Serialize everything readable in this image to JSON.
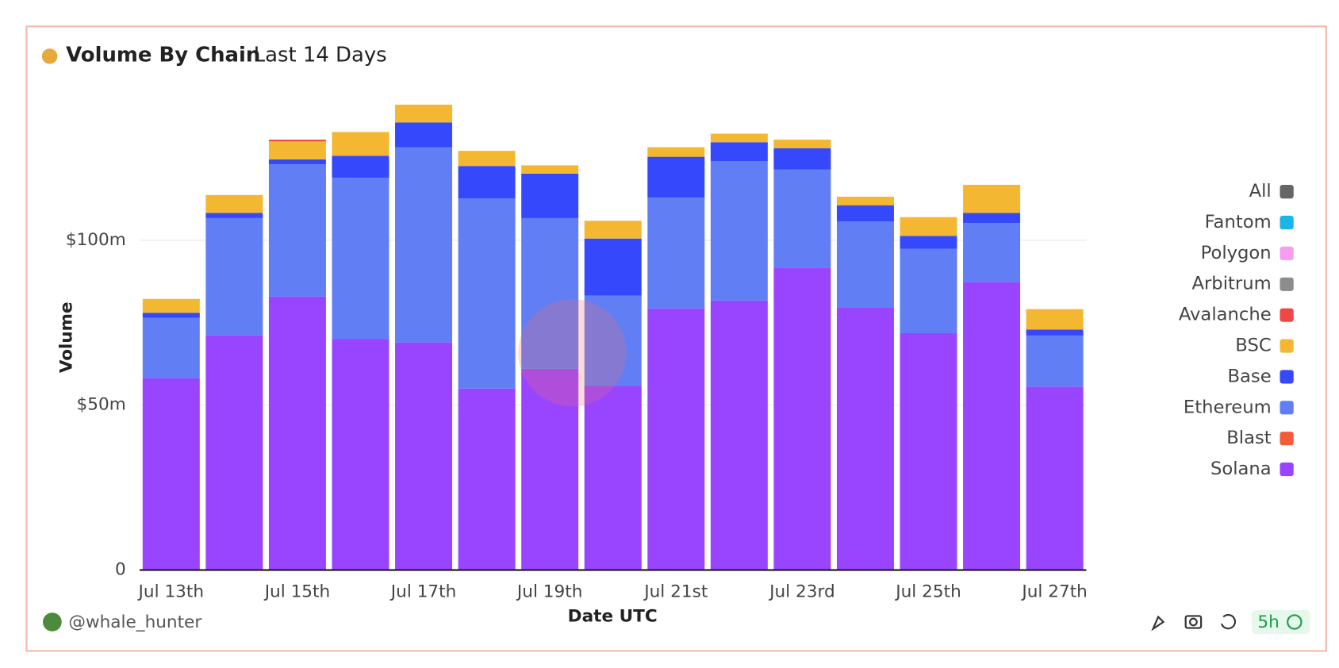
{
  "chart_data": {
    "type": "bar",
    "stacked": true,
    "title": "Volume By Chain",
    "subtitle": "Last 14 Days",
    "x_label": "Date UTC",
    "y_label": "Volume",
    "author": "@whale_hunter",
    "refresh": "5h",
    "categories": [
      "Jul 13th",
      null,
      "Jul 15th",
      null,
      "Jul 17th",
      null,
      "Jul 19th",
      null,
      "Jul 21st",
      null,
      "Jul 23rd",
      null,
      "Jul 25th",
      null,
      "Jul 27th"
    ],
    "ylim": [
      0,
      147
    ],
    "yticks": [
      {
        "value": 0,
        "label": "0"
      },
      {
        "value": 50,
        "label": "$50m"
      },
      {
        "value": 100,
        "label": "$100m"
      }
    ],
    "grid": true,
    "legend": "right",
    "series": [
      {
        "name": "All",
        "color": "#666666",
        "values": [
          0,
          0,
          0,
          0,
          0,
          0,
          0,
          0,
          0,
          0,
          0,
          0,
          0,
          0,
          0
        ]
      },
      {
        "name": "Fantom",
        "color": "#1bb5e8",
        "values": [
          0,
          0,
          0,
          0,
          0,
          0,
          0,
          0,
          0,
          0,
          0,
          0,
          0,
          0,
          0
        ]
      },
      {
        "name": "Polygon",
        "color": "#f59ef0",
        "values": [
          0,
          0,
          0,
          0,
          0,
          0,
          0,
          0,
          0,
          0,
          0,
          0,
          0,
          0,
          0
        ]
      },
      {
        "name": "Arbitrum",
        "color": "#8c8c8c",
        "values": [
          0,
          0,
          0,
          0,
          0,
          0,
          0,
          0,
          0,
          0,
          0,
          0,
          0,
          0,
          0
        ]
      },
      {
        "name": "Avalanche",
        "color": "#f04848",
        "values": [
          0,
          0,
          0.5,
          0,
          0,
          0,
          0,
          0,
          0,
          0,
          0,
          0,
          0,
          0,
          0
        ]
      },
      {
        "name": "BSC",
        "color": "#f3b731",
        "values": [
          4.2,
          5.4,
          5.5,
          7.2,
          5.4,
          4.6,
          2.5,
          5.4,
          2.9,
          2.6,
          2.6,
          2.6,
          5.7,
          8.5,
          6.2
        ]
      },
      {
        "name": "Base",
        "color": "#3548fb",
        "values": [
          1.5,
          1.6,
          1.5,
          6.7,
          7.5,
          9.8,
          13.5,
          17.3,
          12.4,
          5.7,
          6.5,
          4.9,
          3.9,
          3.1,
          1.8
        ]
      },
      {
        "name": "Ethereum",
        "color": "#627ef5",
        "values": [
          18.4,
          35.6,
          40.1,
          48.9,
          59.2,
          57.7,
          45.7,
          27.4,
          33.6,
          42.3,
          29.7,
          26.1,
          25.6,
          17.9,
          15.5
        ]
      },
      {
        "name": "Blast",
        "color": "#f25c3a",
        "values": [
          0,
          0,
          0,
          0,
          0,
          0,
          0,
          0,
          0,
          0,
          0,
          0,
          0,
          0,
          0
        ]
      },
      {
        "name": "Solana",
        "color": "#9945ff",
        "values": [
          58.1,
          71.1,
          82.9,
          70.0,
          69.0,
          55.0,
          61.0,
          55.8,
          79.3,
          81.7,
          91.7,
          79.6,
          71.8,
          87.3,
          55.6
        ]
      }
    ]
  }
}
